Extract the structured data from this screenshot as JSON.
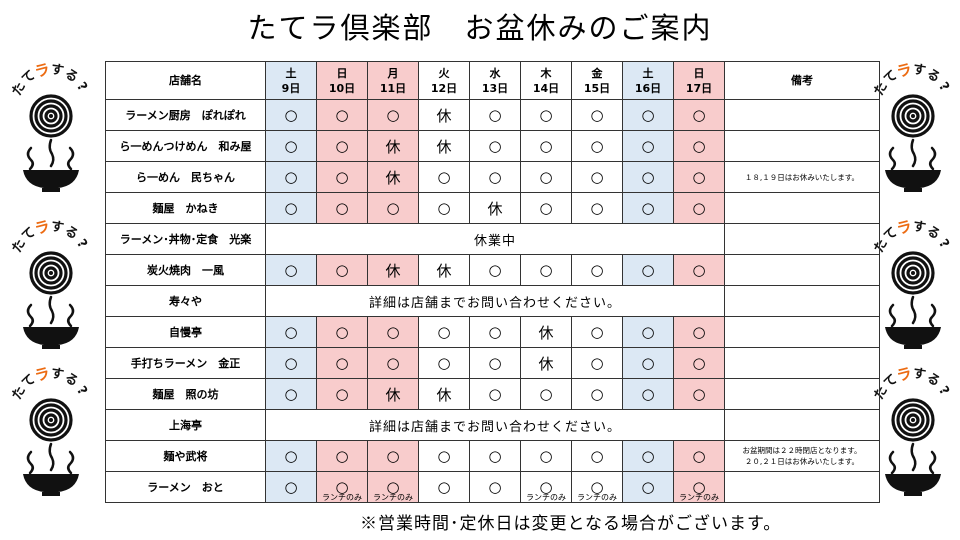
{
  "title": "たてラ倶楽部　お盆休みのご案内",
  "footer": "※営業時間･定休日は変更となる場合がございます。",
  "mascot_label": [
    "た",
    "て",
    "ラ",
    "す",
    "る",
    "?"
  ],
  "colors": {
    "saturday": "#dce8f4",
    "sunday": "#f8cccc",
    "mascot_accent": "#ec6b12",
    "mascot_dark": "#111111"
  },
  "header": {
    "shop": "店舗名",
    "note": "備考"
  },
  "days": [
    {
      "weekday": "土",
      "date": "9日",
      "type": "sat"
    },
    {
      "weekday": "日",
      "date": "10日",
      "type": "sun"
    },
    {
      "weekday": "月",
      "date": "11日",
      "type": "sun"
    },
    {
      "weekday": "火",
      "date": "12日",
      "type": ""
    },
    {
      "weekday": "水",
      "date": "13日",
      "type": ""
    },
    {
      "weekday": "木",
      "date": "14日",
      "type": ""
    },
    {
      "weekday": "金",
      "date": "15日",
      "type": ""
    },
    {
      "weekday": "土",
      "date": "16日",
      "type": "sat"
    },
    {
      "weekday": "日",
      "date": "17日",
      "type": "sun"
    }
  ],
  "shops": [
    {
      "name": "ラーメン厨房　ぽれぽれ",
      "days": [
        "○",
        "○",
        "○",
        "休",
        "○",
        "○",
        "○",
        "○",
        "○"
      ],
      "note": ""
    },
    {
      "name": "ら一めんつけめん　和み屋",
      "days": [
        "○",
        "○",
        "休",
        "休",
        "○",
        "○",
        "○",
        "○",
        "○"
      ],
      "note": ""
    },
    {
      "name": "ら一めん　民ちゃん",
      "days": [
        "○",
        "○",
        "休",
        "○",
        "○",
        "○",
        "○",
        "○",
        "○"
      ],
      "note": "１８,１９日はお休みいたします。"
    },
    {
      "name": "麺屋　かねき",
      "days": [
        "○",
        "○",
        "○",
        "○",
        "休",
        "○",
        "○",
        "○",
        "○"
      ],
      "note": ""
    },
    {
      "name": "ラーメン･丼物･定食　光楽",
      "merged": "休業中",
      "note": ""
    },
    {
      "name": "炭火焼肉　一風",
      "days": [
        "○",
        "○",
        "休",
        "休",
        "○",
        "○",
        "○",
        "○",
        "○"
      ],
      "note": ""
    },
    {
      "name": "寿々や",
      "merged": "詳細は店舗までお問い合わせください。",
      "note": ""
    },
    {
      "name": "自慢亭",
      "days": [
        "○",
        "○",
        "○",
        "○",
        "○",
        "休",
        "○",
        "○",
        "○"
      ],
      "note": ""
    },
    {
      "name": "手打ちラーメン　金正",
      "days": [
        "○",
        "○",
        "○",
        "○",
        "○",
        "休",
        "○",
        "○",
        "○"
      ],
      "note": ""
    },
    {
      "name": "麺屋　照の坊",
      "days": [
        "○",
        "○",
        "休",
        "休",
        "○",
        "○",
        "○",
        "○",
        "○"
      ],
      "note": ""
    },
    {
      "name": "上海亭",
      "merged": "詳細は店舗までお問い合わせください。",
      "note": ""
    },
    {
      "name": "麺や武将",
      "days": [
        "○",
        "○",
        "○",
        "○",
        "○",
        "○",
        "○",
        "○",
        "○"
      ],
      "note": "お盆期間は２２時閉店となります。\n２０,２１日はお休みいたします。"
    },
    {
      "name": "ラーメン　おと",
      "days": [
        "○",
        "○",
        "○",
        "○",
        "○",
        "○",
        "○",
        "○",
        "○"
      ],
      "lunch": [
        "",
        "ランチのみ",
        "ランチのみ",
        "",
        "",
        "ランチのみ",
        "ランチのみ",
        "",
        "ランチのみ"
      ],
      "note": ""
    }
  ]
}
